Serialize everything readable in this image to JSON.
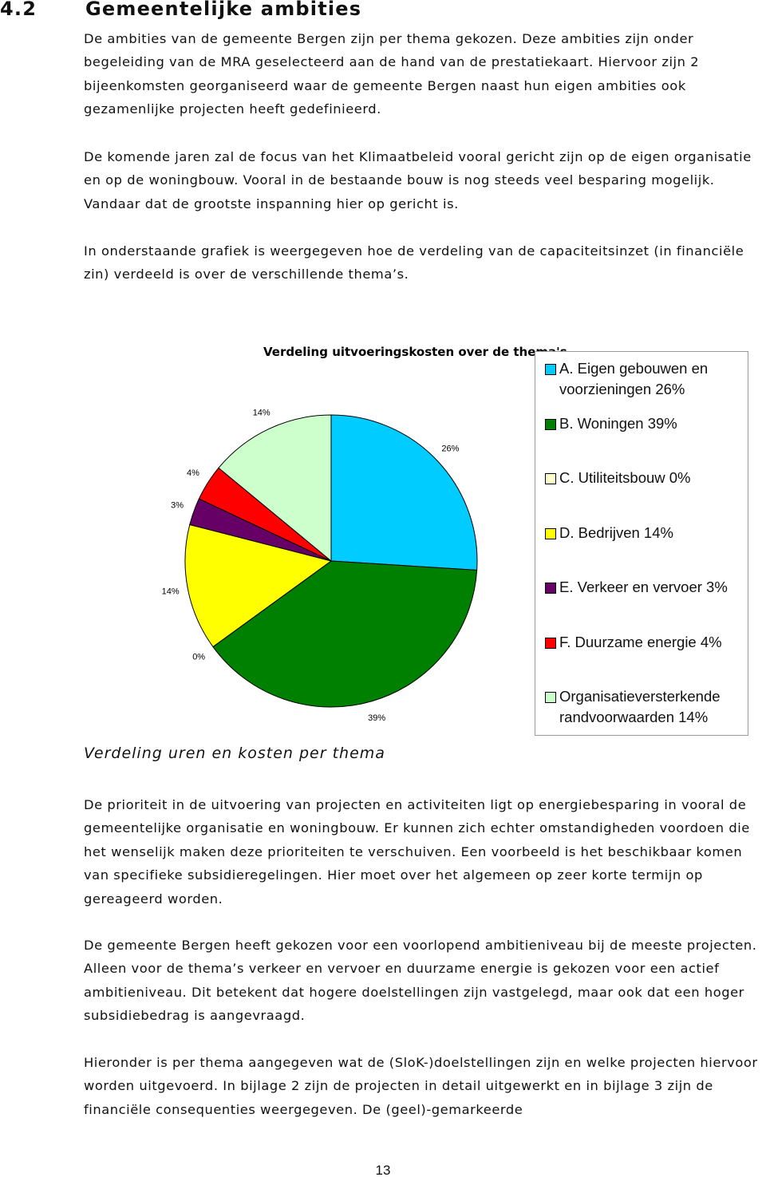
{
  "header": {
    "number": "4.2",
    "title": "Gemeentelijke ambities"
  },
  "paragraphs": [
    "De ambities van de gemeente Bergen zijn per thema gekozen. Deze ambities zijn onder begeleiding van de MRA geselecteerd aan de hand van de prestatiekaart. Hiervoor zijn 2 bijeenkomsten georganiseerd waar de gemeente Bergen naast hun eigen ambities ook gezamenlijke projecten heeft gedefinieerd.",
    "De komende jaren zal de focus van het Klimaatbeleid vooral gericht zijn op de eigen organisatie en op de woningbouw. Vooral in de bestaande bouw is nog steeds veel besparing mogelijk. Vandaar dat de grootste inspanning hier op gericht is.",
    "In onderstaande grafiek is weergegeven hoe de verdeling van de capaciteitsinzet (in financiële zin) verdeeld is over de verschillende thema’s."
  ],
  "chart_data": {
    "type": "pie",
    "title": "Verdeling uitvoeringskosten over de thema's",
    "categories": [
      "A. Eigen gebouwen en voorzieningen 26%",
      "B. Woningen 39%",
      "C. Utiliteitsbouw 0%",
      "D. Bedrijven 14%",
      "E. Verkeer en vervoer 3%",
      "F. Duurzame energie 4%",
      "Organisatieversterkende randvoorwaarden 14%"
    ],
    "values": [
      26,
      39,
      0,
      14,
      3,
      4,
      14
    ],
    "value_labels": [
      "26%",
      "39%",
      "0%",
      "14%",
      "3%",
      "4%",
      "14%"
    ],
    "colors": [
      "#00ccff",
      "#008000",
      "#ffffcc",
      "#ffff00",
      "#660066",
      "#ff0000",
      "#ccffcc"
    ],
    "legend": "right"
  },
  "caption": "Verdeling uren en kosten per thema",
  "paragraphs_after": [
    "De prioriteit in de uitvoering van projecten en activiteiten ligt op energiebesparing in vooral de gemeentelijke organisatie en woningbouw. Er kunnen zich echter omstandigheden voordoen die het wenselijk maken deze prioriteiten te verschuiven. Een voorbeeld is het beschikbaar komen van specifieke subsidieregelingen. Hier moet over het algemeen op zeer korte termijn op gereageerd worden.",
    "De gemeente Bergen heeft gekozen voor een voorlopend ambitieniveau bij de meeste projecten. Alleen voor de thema’s verkeer en vervoer en duurzame energie is gekozen voor een actief ambitieniveau. Dit betekent dat hogere doelstellingen zijn vastgelegd, maar ook dat een hoger subsidiebedrag is aangevraagd.",
    "Hieronder is per thema aangegeven wat de (SloK-)doelstellingen zijn en welke projecten hiervoor worden uitgevoerd. In bijlage 2 zijn de projecten in detail uitgewerkt en in bijlage 3 zijn de financiële consequenties weergegeven. De (geel)-gemarkeerde"
  ],
  "page_number": "13"
}
